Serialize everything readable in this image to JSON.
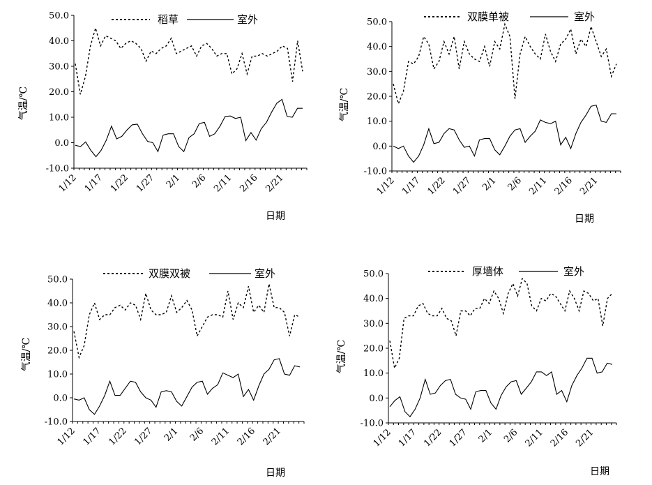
{
  "chart_data": [
    {
      "type": "line",
      "xlabel": "日期",
      "ylabel": "气温/℃",
      "ylim": [
        -10,
        50
      ],
      "yticks": [
        "50.0",
        "40.0",
        "30.0",
        "20.0",
        "10.0",
        "0.0",
        "-10.0"
      ],
      "x_tick_labels": [
        "1/12",
        "1/17",
        "1/22",
        "1/27",
        "2/1",
        "2/6",
        "2/11",
        "2/16",
        "2/21"
      ],
      "legend_position": "top",
      "grid": false,
      "series": [
        {
          "name": "稻草",
          "style": "dashed",
          "values": [
            31.0,
            19.0,
            26.0,
            38.0,
            45.0,
            38.0,
            42.0,
            41.0,
            40.0,
            37.0,
            39.0,
            40.0,
            39.0,
            37.0,
            32.0,
            36.0,
            35.0,
            37.0,
            38.0,
            41.0,
            35.0,
            36.0,
            37.0,
            38.0,
            34.0,
            38.0,
            39.0,
            37.0,
            34.0,
            35.0,
            35.0,
            27.0,
            29.0,
            35.0,
            27.0,
            34.0,
            34.0,
            35.0,
            34.0,
            35.0,
            36.0,
            38.0,
            37.0,
            24.0,
            40.0,
            28.0
          ]
        },
        {
          "name": "室外",
          "style": "solid",
          "values": [
            -1.0,
            -1.5,
            0.3,
            -3.0,
            -5.5,
            -3.0,
            1.0,
            6.5,
            1.5,
            2.5,
            5.0,
            7.0,
            7.3,
            3.5,
            0.5,
            0.0,
            -3.5,
            3.0,
            3.5,
            3.5,
            -1.5,
            -3.5,
            2.0,
            3.5,
            7.5,
            8.0,
            2.5,
            3.5,
            6.5,
            10.3,
            10.5,
            9.5,
            10.0,
            0.8,
            4.0,
            1.0,
            5.5,
            8.0,
            12.0,
            15.5,
            17.0,
            10.3,
            10.0,
            13.5,
            13.5
          ]
        }
      ]
    },
    {
      "type": "line",
      "xlabel": "日期",
      "ylabel": "气温/℃",
      "ylim": [
        -10,
        50
      ],
      "yticks": [
        "50.0",
        "40.0",
        "30.0",
        "20.0",
        "10.0",
        "0.0",
        "-10.0"
      ],
      "x_tick_labels": [
        "1/12",
        "1/17",
        "1/22",
        "1/27",
        "2/1",
        "2/6",
        "2/11",
        "2/16",
        "2/21"
      ],
      "legend_position": "top",
      "grid": false,
      "series": [
        {
          "name": "双膜单被",
          "style": "dashed",
          "values": [
            25.0,
            17.0,
            22.0,
            34.0,
            33.0,
            36.0,
            44.0,
            41.0,
            31.0,
            34.0,
            42.0,
            37.0,
            44.0,
            31.0,
            42.0,
            37.0,
            35.0,
            34.0,
            40.0,
            32.0,
            42.0,
            39.0,
            49.0,
            44.0,
            19.0,
            37.0,
            44.0,
            40.0,
            37.0,
            35.0,
            45.0,
            38.0,
            34.0,
            41.0,
            43.0,
            47.0,
            37.0,
            43.0,
            40.0,
            48.0,
            42.0,
            36.0,
            39.0,
            28.0,
            33.0
          ]
        },
        {
          "name": "室外",
          "style": "solid",
          "values": [
            0.0,
            -1.0,
            0.0,
            -4.0,
            -6.5,
            -4.0,
            0.5,
            7.0,
            1.0,
            1.5,
            5.0,
            7.0,
            6.5,
            2.5,
            -0.5,
            0.0,
            -4.0,
            2.5,
            3.0,
            3.0,
            -1.5,
            -3.5,
            0.0,
            4.0,
            6.5,
            7.0,
            1.5,
            4.0,
            6.0,
            10.5,
            9.5,
            9.0,
            10.0,
            0.5,
            3.5,
            -1.0,
            5.0,
            9.5,
            12.5,
            16.0,
            16.5,
            10.0,
            9.5,
            13.0,
            13.0
          ]
        }
      ]
    },
    {
      "type": "line",
      "xlabel": "日期",
      "ylabel": "气温/℃",
      "ylim": [
        -10,
        50
      ],
      "yticks": [
        "50.0",
        "40.0",
        "30.0",
        "20.0",
        "10.0",
        "0.0",
        "-10.0"
      ],
      "x_tick_labels": [
        "1/12",
        "1/17",
        "1/22",
        "1/27",
        "2/1",
        "2/6",
        "2/11",
        "2/16",
        "2/21"
      ],
      "legend_position": "top",
      "grid": false,
      "series": [
        {
          "name": "双膜双被",
          "style": "dashed",
          "values": [
            28.0,
            17.0,
            22.0,
            35.0,
            40.0,
            33.0,
            35.0,
            35.0,
            38.0,
            39.0,
            37.0,
            40.0,
            39.0,
            33.0,
            44.0,
            37.0,
            35.0,
            35.0,
            36.0,
            43.0,
            36.0,
            38.0,
            41.0,
            37.0,
            26.0,
            30.0,
            34.0,
            35.0,
            35.0,
            34.0,
            45.0,
            33.0,
            40.0,
            38.0,
            47.0,
            36.0,
            39.0,
            36.0,
            48.0,
            38.0,
            38.0,
            36.0,
            26.0,
            35.0,
            34.0
          ]
        },
        {
          "name": "室外",
          "style": "solid",
          "values": [
            -0.5,
            -1.0,
            0.0,
            -5.0,
            -7.0,
            -3.5,
            1.0,
            7.0,
            1.0,
            1.0,
            4.0,
            7.0,
            6.5,
            2.5,
            0.0,
            -1.0,
            -4.0,
            2.5,
            3.0,
            2.5,
            -1.5,
            -3.5,
            0.5,
            4.5,
            6.5,
            7.0,
            1.5,
            4.0,
            5.5,
            10.5,
            9.5,
            8.5,
            10.0,
            0.5,
            3.5,
            -1.0,
            5.0,
            10.0,
            12.0,
            16.0,
            16.5,
            10.0,
            9.5,
            13.5,
            13.0
          ]
        }
      ]
    },
    {
      "type": "line",
      "xlabel": "日期",
      "ylabel": "气温/℃",
      "ylim": [
        -10,
        50
      ],
      "yticks": [
        "50.0",
        "40.0",
        "30.0",
        "20.0",
        "10.0",
        "0.0",
        "-10.0"
      ],
      "x_tick_labels": [
        "1/12",
        "1/17",
        "1/22",
        "1/27",
        "2/1",
        "2/6",
        "2/11",
        "2/16",
        "2/21"
      ],
      "legend_position": "top",
      "grid": false,
      "series": [
        {
          "name": "厚墙体",
          "style": "dashed",
          "values": [
            23.0,
            12.0,
            16.0,
            32.0,
            33.0,
            33.0,
            37.0,
            38.0,
            34.0,
            33.0,
            33.0,
            36.0,
            32.0,
            31.0,
            25.0,
            35.0,
            35.0,
            33.0,
            36.0,
            36.0,
            40.0,
            38.0,
            43.0,
            40.0,
            34.0,
            42.0,
            46.0,
            41.0,
            48.0,
            46.0,
            37.0,
            35.0,
            40.0,
            39.0,
            42.0,
            41.0,
            38.0,
            35.0,
            43.0,
            40.0,
            35.0,
            43.0,
            42.0,
            39.0,
            40.0,
            29.0,
            40.0,
            42.0
          ]
        },
        {
          "name": "室外",
          "style": "solid",
          "values": [
            -3.5,
            -1.0,
            0.5,
            -5.5,
            -7.5,
            -4.5,
            0.0,
            7.5,
            1.5,
            2.0,
            5.0,
            7.0,
            7.5,
            1.5,
            0.0,
            -0.5,
            -4.5,
            2.5,
            3.0,
            3.0,
            -2.0,
            -4.5,
            1.0,
            4.5,
            6.5,
            7.0,
            1.5,
            4.0,
            6.5,
            10.5,
            10.5,
            9.0,
            10.5,
            1.5,
            3.0,
            -1.5,
            5.0,
            9.0,
            12.0,
            16.0,
            16.0,
            10.0,
            10.5,
            14.0,
            13.5
          ]
        }
      ]
    }
  ]
}
